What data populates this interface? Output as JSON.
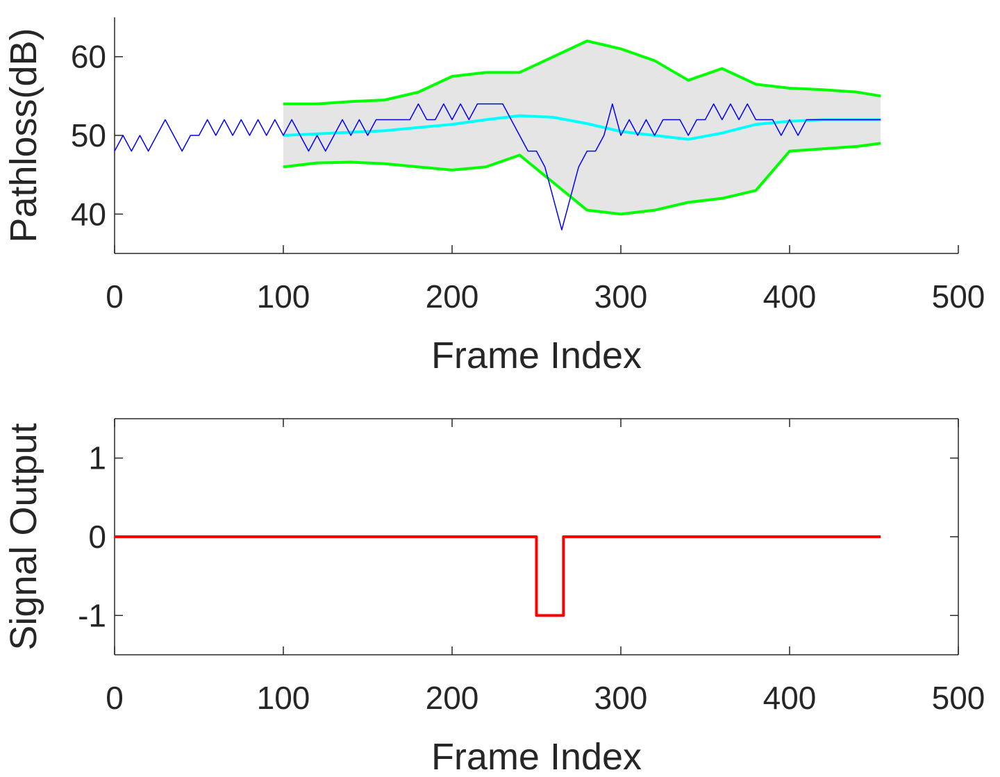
{
  "chart_data": [
    {
      "type": "line",
      "xlabel": "Frame Index",
      "ylabel": "Pathloss(dB)",
      "xlim": [
        0,
        500
      ],
      "xticks": [
        0,
        100,
        200,
        300,
        400,
        500
      ],
      "ylim": [
        35,
        65
      ],
      "yticks": [
        40,
        50,
        60
      ],
      "box": false,
      "band_fill": "#e5e5e5",
      "series": [
        {
          "color": "#0000ff",
          "width": 1.5,
          "x": [
            0,
            5,
            10,
            15,
            20,
            25,
            30,
            35,
            40,
            45,
            50,
            55,
            60,
            65,
            70,
            75,
            80,
            85,
            90,
            95,
            100,
            105,
            110,
            115,
            120,
            125,
            130,
            135,
            140,
            145,
            150,
            155,
            160,
            165,
            170,
            175,
            180,
            185,
            190,
            195,
            200,
            205,
            210,
            215,
            220,
            225,
            230,
            235,
            240,
            245,
            250,
            255,
            260,
            265,
            270,
            275,
            280,
            285,
            290,
            295,
            300,
            305,
            310,
            315,
            320,
            325,
            330,
            335,
            340,
            345,
            350,
            355,
            360,
            365,
            370,
            375,
            380,
            385,
            390,
            395,
            400,
            405,
            410,
            415,
            420,
            425,
            430,
            435,
            440,
            445,
            450,
            454
          ],
          "values": [
            48,
            50,
            48,
            50,
            48,
            50,
            52,
            50,
            48,
            50,
            50,
            52,
            50,
            52,
            50,
            52,
            50,
            52,
            50,
            52,
            50,
            52,
            50,
            48,
            50,
            48,
            50,
            52,
            50,
            52,
            50,
            52,
            52,
            52,
            52,
            52,
            54,
            52,
            52,
            54,
            52,
            54,
            52,
            54,
            54,
            54,
            54,
            52,
            50,
            48,
            48,
            46,
            42,
            38,
            42,
            46,
            48,
            48,
            50,
            54,
            50,
            52,
            50,
            52,
            50,
            52,
            52,
            52,
            50,
            52,
            52,
            54,
            52,
            54,
            52,
            54,
            52,
            52,
            52,
            50,
            52,
            50,
            52,
            52,
            52,
            52,
            52,
            52,
            52,
            52,
            52,
            52
          ]
        },
        {
          "color": "#00ff00",
          "width": 4,
          "x": [
            100,
            120,
            140,
            160,
            180,
            200,
            220,
            240,
            260,
            280,
            300,
            320,
            340,
            360,
            380,
            400,
            420,
            440,
            454
          ],
          "values": [
            54,
            54,
            54.3,
            54.5,
            55.5,
            57.5,
            58,
            58,
            60,
            62,
            61,
            59.5,
            57,
            58.5,
            56.5,
            56,
            55.8,
            55.5,
            55
          ]
        },
        {
          "color": "#00ff00",
          "width": 4,
          "x": [
            100,
            120,
            140,
            160,
            180,
            200,
            220,
            240,
            260,
            280,
            300,
            320,
            340,
            360,
            380,
            400,
            420,
            440,
            454
          ],
          "values": [
            46,
            46.5,
            46.6,
            46.4,
            46,
            45.6,
            46,
            47.5,
            44,
            40.5,
            40,
            40.5,
            41.5,
            42,
            43,
            48,
            48.3,
            48.6,
            49
          ]
        },
        {
          "color": "#00ffff",
          "width": 4,
          "x": [
            100,
            120,
            140,
            160,
            180,
            200,
            220,
            240,
            260,
            280,
            300,
            320,
            340,
            360,
            380,
            400,
            420,
            440,
            454
          ],
          "values": [
            50,
            50.2,
            50.4,
            50.6,
            51,
            51.4,
            52,
            52.5,
            52.3,
            51.5,
            50.5,
            50,
            49.5,
            50.3,
            51.4,
            51.8,
            52,
            52,
            52
          ]
        }
      ]
    },
    {
      "type": "line",
      "xlabel": "Frame Index",
      "ylabel": "Signal Output",
      "xlim": [
        0,
        500
      ],
      "xticks": [
        0,
        100,
        200,
        300,
        400,
        500
      ],
      "ylim": [
        -1.5,
        1.5
      ],
      "yticks": [
        -1,
        0,
        1
      ],
      "box": true,
      "series": [
        {
          "color": "#ff0000",
          "width": 4,
          "x": [
            0,
            250,
            250,
            266,
            266,
            454
          ],
          "values": [
            0,
            0,
            -1,
            -1,
            0,
            0
          ]
        }
      ]
    }
  ]
}
